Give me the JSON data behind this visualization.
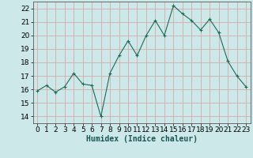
{
  "x": [
    0,
    1,
    2,
    3,
    4,
    5,
    6,
    7,
    8,
    9,
    10,
    11,
    12,
    13,
    14,
    15,
    16,
    17,
    18,
    19,
    20,
    21,
    22,
    23
  ],
  "y": [
    15.9,
    16.3,
    15.8,
    16.2,
    17.2,
    16.4,
    16.3,
    14.0,
    17.2,
    18.5,
    19.6,
    18.5,
    20.0,
    21.1,
    20.0,
    22.2,
    21.6,
    21.1,
    20.4,
    21.2,
    20.2,
    18.1,
    17.0,
    16.2
  ],
  "xlim": [
    -0.5,
    23.5
  ],
  "ylim": [
    13.5,
    22.5
  ],
  "yticks": [
    14,
    15,
    16,
    17,
    18,
    19,
    20,
    21,
    22
  ],
  "xticks": [
    0,
    1,
    2,
    3,
    4,
    5,
    6,
    7,
    8,
    9,
    10,
    11,
    12,
    13,
    14,
    15,
    16,
    17,
    18,
    19,
    20,
    21,
    22,
    23
  ],
  "xlabel": "Humidex (Indice chaleur)",
  "line_color": "#1a6b5a",
  "marker": "+",
  "bg_color": "#cce8e8",
  "grid_color": "#b8d4d4",
  "axis_bg": "#cce8e8",
  "xlabel_fontsize": 7,
  "tick_fontsize": 6.5,
  "xlabel_fontweight": "bold"
}
